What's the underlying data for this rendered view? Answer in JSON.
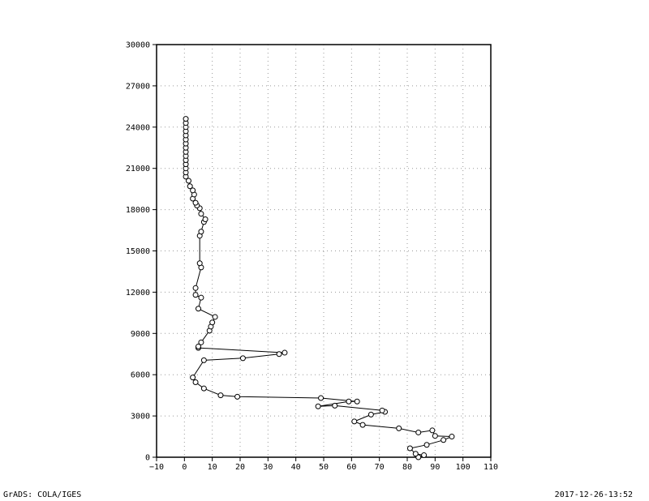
{
  "footer": {
    "left_text": "GrADS: COLA/IGES",
    "right_text": "2017-12-26-13:52"
  },
  "chart_data": {
    "type": "line",
    "title": "",
    "xlabel": "",
    "ylabel": "",
    "xlim": [
      -10,
      110
    ],
    "ylim": [
      0,
      30000
    ],
    "x_ticks": [
      -10,
      0,
      10,
      20,
      30,
      40,
      50,
      60,
      70,
      80,
      90,
      100,
      110
    ],
    "y_ticks": [
      0,
      3000,
      6000,
      9000,
      12000,
      15000,
      18000,
      21000,
      24000,
      27000,
      30000
    ],
    "grid": true,
    "legend": "none",
    "marker": "open-circle",
    "line_color": "#000000",
    "series": [
      {
        "points": [
          [
            84,
            0
          ],
          [
            86,
            150
          ],
          [
            83,
            250
          ],
          [
            81,
            650
          ],
          [
            87,
            900
          ],
          [
            93,
            1250
          ],
          [
            96,
            1500
          ],
          [
            90,
            1550
          ],
          [
            89,
            1950
          ],
          [
            84,
            1800
          ],
          [
            77,
            2100
          ],
          [
            64,
            2350
          ],
          [
            61,
            2600
          ],
          [
            67,
            3100
          ],
          [
            72,
            3300
          ],
          [
            71,
            3400
          ],
          [
            54,
            3750
          ],
          [
            48,
            3700
          ],
          [
            59,
            4050
          ],
          [
            62,
            4050
          ],
          [
            49,
            4300
          ],
          [
            19,
            4400
          ],
          [
            13,
            4500
          ],
          [
            7,
            5000
          ],
          [
            4,
            5450
          ],
          [
            3,
            5800
          ],
          [
            7,
            7050
          ],
          [
            21,
            7200
          ],
          [
            34,
            7500
          ],
          [
            36,
            7600
          ],
          [
            5,
            7950
          ],
          [
            5,
            8050
          ],
          [
            6,
            8350
          ],
          [
            9,
            9200
          ],
          [
            9.5,
            9500
          ],
          [
            10,
            9800
          ],
          [
            11,
            10200
          ],
          [
            5,
            10800
          ],
          [
            6,
            11600
          ],
          [
            4,
            11800
          ],
          [
            4,
            12300
          ],
          [
            6,
            13800
          ],
          [
            5.5,
            14100
          ],
          [
            5.5,
            16100
          ],
          [
            6,
            16400
          ],
          [
            7,
            17100
          ],
          [
            7.5,
            17300
          ],
          [
            6,
            17700
          ],
          [
            5.5,
            18100
          ],
          [
            4.5,
            18300
          ],
          [
            4,
            18500
          ],
          [
            3,
            18800
          ],
          [
            3.5,
            19100
          ],
          [
            3,
            19400
          ],
          [
            2,
            19700
          ],
          [
            1.5,
            20100
          ],
          [
            0.5,
            20400
          ],
          [
            0.5,
            20700
          ],
          [
            0.5,
            21000
          ],
          [
            0.5,
            21300
          ],
          [
            0.5,
            21600
          ],
          [
            0.5,
            21900
          ],
          [
            0.5,
            22200
          ],
          [
            0.5,
            22500
          ],
          [
            0.5,
            22800
          ],
          [
            0.5,
            23100
          ],
          [
            0.5,
            23400
          ],
          [
            0.5,
            23700
          ],
          [
            0.5,
            24000
          ],
          [
            0.5,
            24300
          ],
          [
            0.5,
            24600
          ]
        ]
      }
    ]
  }
}
